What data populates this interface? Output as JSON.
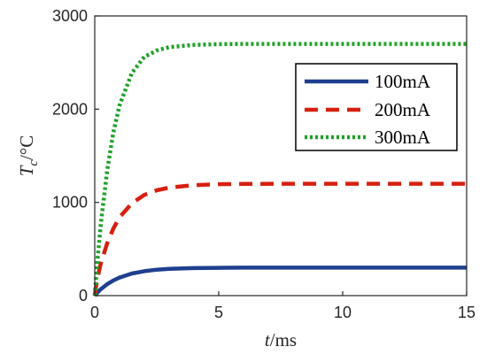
{
  "chart_data": {
    "type": "line",
    "title": "",
    "xlabel": {
      "var": "t",
      "unit": "/ms"
    },
    "ylabel": {
      "var": "T",
      "sub": "c",
      "unit": "/°C"
    },
    "xlim": [
      0,
      15
    ],
    "ylim": [
      0,
      3000
    ],
    "xticks": [
      0,
      5,
      10,
      15
    ],
    "yticks": [
      0,
      1000,
      2000,
      3000
    ],
    "grid": false,
    "legend_position": "top-right",
    "series": [
      {
        "name": "100mA",
        "color": "#1f3f8f",
        "style": "solid",
        "x": [
          0,
          0.1,
          0.25,
          0.5,
          0.75,
          1,
          1.5,
          2,
          2.5,
          3,
          4,
          5,
          6,
          8,
          10,
          12,
          15
        ],
        "y": [
          0,
          30,
          70,
          122,
          162,
          194,
          237,
          262,
          278,
          287,
          295,
          298,
          300,
          300,
          300,
          300,
          300
        ]
      },
      {
        "name": "200mA",
        "color": "#d62010",
        "style": "dashed",
        "x": [
          0,
          0.1,
          0.25,
          0.5,
          0.75,
          1,
          1.5,
          2,
          2.5,
          3,
          4,
          5,
          6,
          8,
          10,
          12,
          15
        ],
        "y": [
          0,
          180,
          350,
          560,
          720,
          840,
          990,
          1080,
          1130,
          1158,
          1185,
          1195,
          1198,
          1200,
          1200,
          1200,
          1200
        ]
      },
      {
        "name": "300mA",
        "color": "#1ea028",
        "style": "dotted",
        "x": [
          0,
          0.1,
          0.25,
          0.5,
          0.75,
          1,
          1.5,
          2,
          2.5,
          3,
          4,
          5,
          6,
          8,
          10,
          12,
          15
        ],
        "y": [
          0,
          350,
          780,
          1340,
          1750,
          2040,
          2390,
          2560,
          2630,
          2665,
          2690,
          2697,
          2700,
          2700,
          2700,
          2700,
          2700
        ]
      }
    ]
  }
}
